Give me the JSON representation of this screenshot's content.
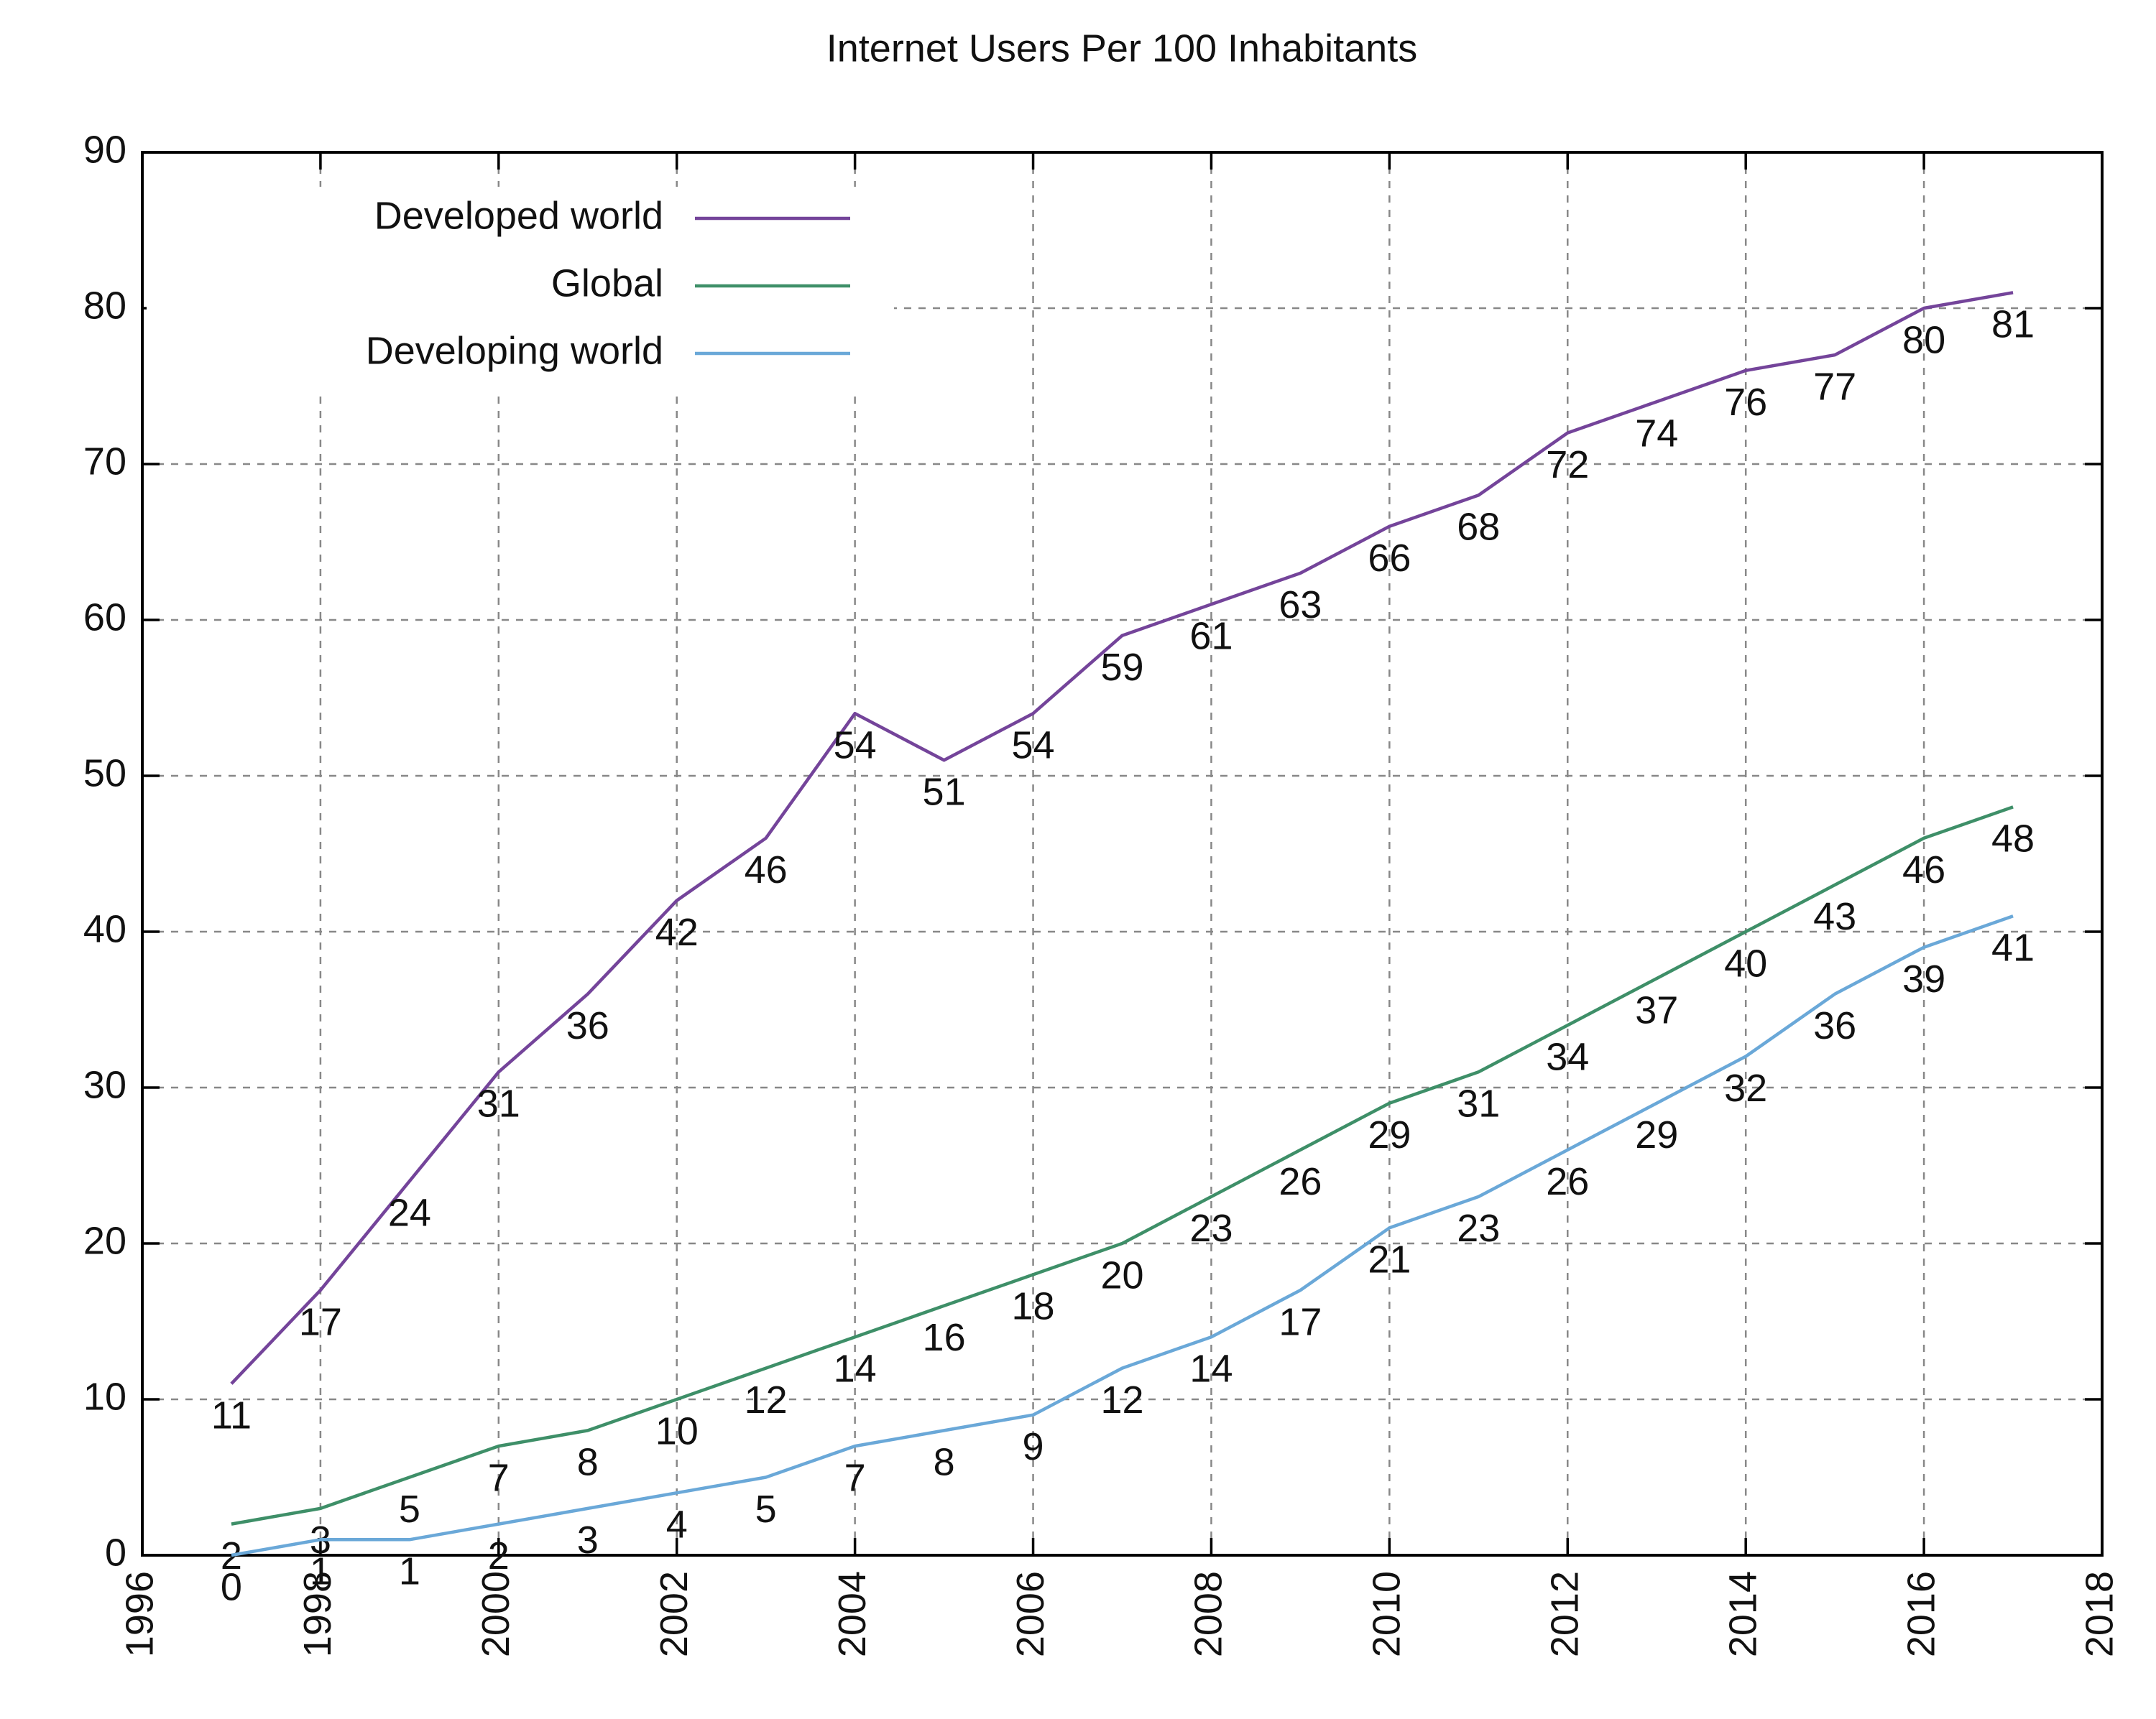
{
  "chart_data": {
    "type": "line",
    "title": "Internet Users Per 100 Inhabitants",
    "x": [
      1997,
      1998,
      1999,
      2000,
      2001,
      2002,
      2003,
      2004,
      2005,
      2006,
      2007,
      2008,
      2009,
      2010,
      2011,
      2012,
      2013,
      2014,
      2015,
      2016,
      2017
    ],
    "series": [
      {
        "name": "Developed world",
        "color": "#74449a",
        "values": [
          11,
          17,
          24,
          31,
          36,
          42,
          46,
          54,
          51,
          54,
          59,
          61,
          63,
          66,
          68,
          72,
          74,
          76,
          77,
          80,
          81
        ]
      },
      {
        "name": "Global",
        "color": "#3e8f68",
        "values": [
          2,
          3,
          5,
          7,
          8,
          10,
          12,
          14,
          16,
          18,
          20,
          23,
          26,
          29,
          31,
          34,
          37,
          40,
          43,
          46,
          48
        ]
      },
      {
        "name": "Developing world",
        "color": "#6aa8d8",
        "values": [
          0,
          1,
          1,
          2,
          3,
          4,
          5,
          7,
          8,
          9,
          12,
          14,
          17,
          21,
          23,
          26,
          29,
          32,
          36,
          39,
          41
        ]
      }
    ],
    "xlim": [
      1996,
      2018
    ],
    "xticks": [
      1996,
      1998,
      2000,
      2002,
      2004,
      2006,
      2008,
      2010,
      2012,
      2014,
      2016,
      2018
    ],
    "ylim": [
      0,
      90
    ],
    "yticks": [
      0,
      10,
      20,
      30,
      40,
      50,
      60,
      70,
      80,
      90
    ],
    "grid": true,
    "legend": "top-left",
    "data_labels": true
  }
}
